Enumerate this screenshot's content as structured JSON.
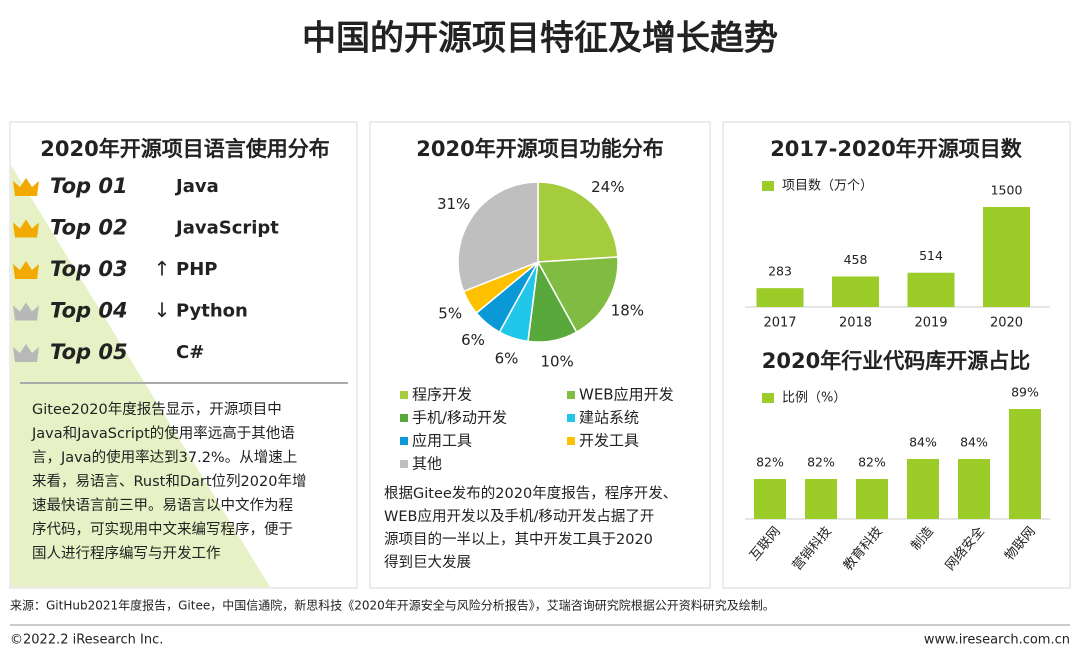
{
  "title": "中国的开源项目特征及增长趋势",
  "ranking": {
    "title": "2020年开源项目语言使用分布",
    "items": [
      {
        "rank": "Top 01",
        "name": "Java"
      },
      {
        "rank": "Top 02",
        "name": "JavaScript"
      },
      {
        "rank": "Top 03",
        "trend": "↑",
        "name": "PHP"
      },
      {
        "rank": "Top 04",
        "trend": "↓",
        "name": "Python"
      },
      {
        "rank": "Top 05",
        "name": "C#"
      }
    ],
    "text": [
      "Gitee2020年度报告显示，开源项目中",
      "Java和JavaScript的使用率远高于其他语",
      "言，Java的使用率达到37.2%。从增速上",
      "来看，易语言、Rust和Dart位列2020年增",
      "速最快语言前三甲。易语言以中文作为程",
      "序代码，可实现用中文来编写程序，便于",
      "国人进行程序编写与开发工作"
    ]
  },
  "chart_data": [
    {
      "type": "pie",
      "title": "2020年开源项目功能分布",
      "categories": [
        "程序开发",
        "WEB应用开发",
        "手机/移动开发",
        "建站系统",
        "应用工具",
        "开发工具",
        "其他"
      ],
      "values": [
        24,
        18,
        10,
        6,
        6,
        5,
        31
      ],
      "value_labels": [
        "24%",
        "18%",
        "10%",
        "6%",
        "6%",
        "5%",
        "31%"
      ],
      "colors": [
        "#a5cc3c",
        "#7fbc41",
        "#58a83c",
        "#22c6e8",
        "#0a98d6",
        "#ffc000",
        "#bfbfbf"
      ],
      "note": [
        "根据Gitee发布的2020年度报告，程序开发、",
        "WEB应用开发以及手机/移动开发占据了开",
        "源项目的一半以上，其中开发工具于2020",
        "得到巨大发展"
      ]
    },
    {
      "type": "bar",
      "title": "2017-2020年开源项目数",
      "categories": [
        "2017",
        "2018",
        "2019",
        "2020"
      ],
      "series": [
        {
          "name": "项目数（万个）",
          "color": "#9ccc28",
          "values": [
            283,
            458,
            514,
            1500
          ]
        }
      ],
      "ylim": [
        0,
        1500
      ]
    },
    {
      "type": "bar",
      "title": "2020年行业代码库开源占比",
      "categories": [
        "互联网",
        "营销科技",
        "教育科技",
        "制造",
        "网络安全",
        "物联网"
      ],
      "series": [
        {
          "name": "比例（%）",
          "color": "#9ccc28",
          "values": [
            82,
            82,
            82,
            84,
            84,
            89
          ],
          "value_labels": [
            "82%",
            "82%",
            "82%",
            "84%",
            "84%",
            "89%"
          ]
        }
      ],
      "ylim": [
        78,
        90
      ],
      "rotate_labels": true
    }
  ],
  "source": "来源：GitHub2021年度报告，Gitee，中国信通院，新思科技《2020年开源安全与风险分析报告》，艾瑞咨询研究院根据公开资料研究及绘制。",
  "footer": {
    "left": "©2022.2 iResearch Inc.",
    "right": "www.iresearch.com.cn"
  }
}
